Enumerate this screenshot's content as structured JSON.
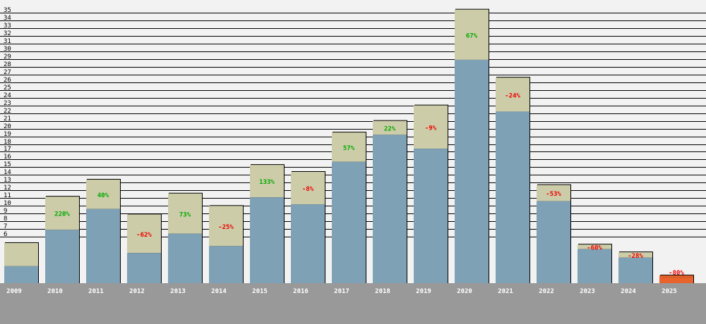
{
  "chart_data": {
    "type": "bar",
    "categories": [
      "2009",
      "2010",
      "2011",
      "2012",
      "2013",
      "2014",
      "2015",
      "2016",
      "2017",
      "2018",
      "2019",
      "2020",
      "2021",
      "2022",
      "2023",
      "2024",
      "2025"
    ],
    "series": [
      {
        "values": [
          2.2,
          6.9,
          9.6,
          3.9,
          6.4,
          4.8,
          11.1,
          10.2,
          15.7,
          19.2,
          17.4,
          28.9,
          22.2,
          10.6,
          4.4,
          3.3,
          0.8
        ]
      },
      {
        "values": [
          5.2,
          11.2,
          13.4,
          8.9,
          11.6,
          10.0,
          15.3,
          14.4,
          19.5,
          21.0,
          23.0,
          35.4,
          26.6,
          12.7,
          5.0,
          4.0,
          1.0
        ]
      }
    ],
    "labels": [
      "",
      "220%",
      "40%",
      "-62%",
      "73%",
      "-25%",
      "133%",
      "-8%",
      "57%",
      "22%",
      "-9%",
      "67%",
      "-24%",
      "-53%",
      "-60%",
      "-28%",
      "-80%"
    ],
    "ylim": [
      0,
      35
    ],
    "yticks": [
      6,
      7,
      8,
      9,
      10,
      11,
      12,
      13,
      14,
      15,
      16,
      17,
      18,
      19,
      20,
      21,
      22,
      23,
      24,
      25,
      26,
      27,
      28,
      29,
      30,
      31,
      32,
      33,
      34,
      35
    ],
    "grid": true,
    "colors": {
      "background": "#f2f2f2",
      "grid": "#000000",
      "bar_lower": "#7fa1b5",
      "bar_upper": "#cccca8",
      "bar_last": "#e8642c",
      "x_band": "#999999",
      "positive": "#00aa00",
      "negative": "#ee0000"
    }
  }
}
